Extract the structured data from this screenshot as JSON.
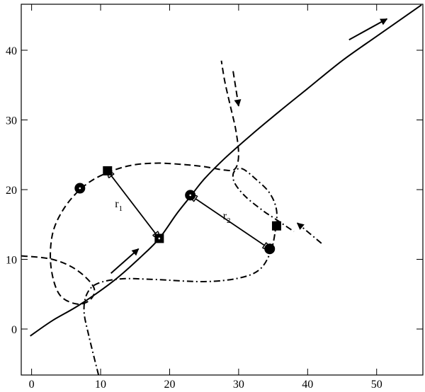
{
  "chart_data": {
    "type": "trajectory",
    "xlim": [
      -1.5,
      56.7
    ],
    "ylim": [
      -6.6,
      46.6
    ],
    "xticks": [
      0,
      10,
      20,
      30,
      40,
      50
    ],
    "yticks": [
      0,
      10,
      20,
      30,
      40
    ],
    "series": [
      {
        "dash": "solid",
        "x": [
          -0.2,
          3,
          7,
          12,
          16,
          18.5,
          21,
          23,
          25,
          28,
          32,
          36,
          40,
          45,
          50,
          56.5
        ],
        "y": [
          -1,
          1.2,
          3.5,
          7,
          10.5,
          13,
          16.5,
          19,
          21.5,
          24.5,
          28,
          31.3,
          34.5,
          38.5,
          42,
          46.5
        ]
      },
      {
        "dash": "dashed",
        "x": [
          -1.5,
          3,
          6.5,
          9,
          8.5,
          6.5,
          4,
          2.8,
          3,
          4.5,
          7,
          10,
          14,
          18,
          22,
          25,
          28,
          29.5,
          30,
          29.6,
          28.8,
          28,
          27.5
        ],
        "y": [
          10.5,
          10,
          8.5,
          6,
          4.2,
          3.6,
          5,
          9,
          13.5,
          17,
          20,
          22,
          23.4,
          23.8,
          23.6,
          23.3,
          22.8,
          23,
          25,
          28.5,
          32,
          35.5,
          38.5
        ]
      },
      {
        "dash": "dashdot",
        "x": [
          9.7,
          8.3,
          7.6,
          8,
          9.5,
          13,
          18,
          25,
          30,
          33,
          34.6,
          35.3,
          35.5,
          34.5,
          32.5,
          30.5,
          29.3,
          29.4,
          31,
          33.5,
          35,
          36.5,
          38
        ],
        "y": [
          -6.6,
          -1,
          2.5,
          5,
          6.5,
          7.2,
          7.1,
          6.8,
          7.3,
          8.5,
          11,
          14,
          17,
          19.5,
          21.5,
          23,
          22.5,
          21,
          19,
          17,
          16,
          15,
          14
        ]
      }
    ],
    "circles": {
      "x": [
        7,
        23,
        34.5
      ],
      "y": [
        20.2,
        19.2,
        11.5
      ]
    },
    "squares": {
      "x": [
        11,
        18.5,
        35.5
      ],
      "y": [
        22.7,
        13,
        14.8
      ]
    },
    "arrows": [
      {
        "from": [
          11.5,
          8
        ],
        "to": [
          15.5,
          11.5
        ],
        "dash": "solid"
      },
      {
        "from": [
          46,
          41.5
        ],
        "to": [
          51.5,
          44.5
        ],
        "dash": "solid"
      },
      {
        "from": [
          29.2,
          37
        ],
        "to": [
          30,
          32
        ],
        "dash": "dashed"
      },
      {
        "from": [
          42,
          12.3
        ],
        "to": [
          38.5,
          15.2
        ],
        "dash": "dashdot"
      }
    ],
    "distances": [
      {
        "label": "r",
        "subscript": "1",
        "from": [
          11,
          22.7
        ],
        "to": [
          18.5,
          13
        ]
      },
      {
        "label": "r",
        "subscript": "2",
        "from": [
          23,
          19.2
        ],
        "to": [
          34.5,
          11.5
        ]
      }
    ]
  }
}
